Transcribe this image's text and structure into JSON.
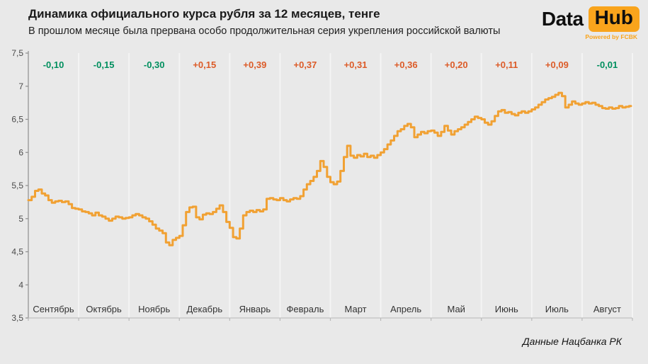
{
  "logo": {
    "part1": "Data",
    "part2": "Hub",
    "powered": "Powered by FCBK"
  },
  "chart_data": {
    "type": "line",
    "title": "Динамика официального курса рубля за 12 месяцев, тенге",
    "subtitle": "В прошлом месяце была прервана особо продолжительная серия укрепления российской валюты",
    "source": "Данные Нацбанка РК",
    "y_axis": {
      "min": 3.5,
      "max": 7.5,
      "step": 0.5,
      "tick_labels": [
        "7,5",
        "7",
        "6,5",
        "6",
        "5,5",
        "5",
        "4,5",
        "4",
        "3,5"
      ]
    },
    "months": [
      "Сентябрь",
      "Октябрь",
      "Ноябрь",
      "Декабрь",
      "Январь",
      "Февраль",
      "Март",
      "Апрель",
      "Май",
      "Июнь",
      "Июль",
      "Август"
    ],
    "monthly_change_labels": [
      "-0,10",
      "-0,15",
      "-0,30",
      "+0,15",
      "+0,39",
      "+0,37",
      "+0,31",
      "+0,36",
      "+0,20",
      "+0,11",
      "+0,09",
      "-0,01"
    ],
    "series": [
      {
        "values_by_month": [
          [
            5.28,
            5.33,
            5.42,
            5.44,
            5.38,
            5.35,
            5.28,
            5.24,
            5.26,
            5.27,
            5.25,
            5.26,
            5.22,
            5.16,
            5.15
          ],
          [
            5.14,
            5.11,
            5.1,
            5.08,
            5.05,
            5.09,
            5.05,
            5.03,
            5.0,
            4.97,
            5.0,
            5.03,
            5.02,
            5.0,
            5.01
          ],
          [
            5.02,
            5.05,
            5.07,
            5.05,
            5.02,
            5.0,
            4.96,
            4.91,
            4.85,
            4.82,
            4.78,
            4.64,
            4.6,
            4.68,
            4.71
          ],
          [
            4.74,
            4.9,
            5.1,
            5.17,
            5.18,
            5.02,
            4.99,
            5.06,
            5.08,
            5.07,
            5.1,
            5.15,
            5.2,
            5.1,
            4.95
          ],
          [
            4.86,
            4.72,
            4.7,
            4.85,
            5.05,
            5.1,
            5.12,
            5.1,
            5.13,
            5.11,
            5.14,
            5.3,
            5.31,
            5.29,
            5.28
          ],
          [
            5.31,
            5.28,
            5.26,
            5.29,
            5.31,
            5.3,
            5.34,
            5.44,
            5.52,
            5.57,
            5.63,
            5.72,
            5.87,
            5.78,
            5.63
          ],
          [
            5.55,
            5.52,
            5.56,
            5.72,
            5.93,
            6.1,
            5.95,
            5.92,
            5.96,
            5.94,
            5.98,
            5.93,
            5.95,
            5.92,
            5.96
          ],
          [
            6.0,
            6.05,
            6.12,
            6.18,
            6.25,
            6.32,
            6.35,
            6.4,
            6.43,
            6.38,
            6.23,
            6.27,
            6.31,
            6.29,
            6.32
          ],
          [
            6.33,
            6.3,
            6.25,
            6.31,
            6.4,
            6.33,
            6.27,
            6.32,
            6.35,
            6.38,
            6.42,
            6.46,
            6.5,
            6.54,
            6.52
          ],
          [
            6.5,
            6.45,
            6.42,
            6.47,
            6.55,
            6.62,
            6.64,
            6.6,
            6.61,
            6.58,
            6.56,
            6.6,
            6.62,
            6.6,
            6.62
          ],
          [
            6.65,
            6.68,
            6.72,
            6.76,
            6.8,
            6.82,
            6.84,
            6.87,
            6.9,
            6.85,
            6.68,
            6.72,
            6.77,
            6.74,
            6.72
          ],
          [
            6.74,
            6.76,
            6.74,
            6.75,
            6.72,
            6.7,
            6.67,
            6.66,
            6.68,
            6.66,
            6.67,
            6.7,
            6.68,
            6.69,
            6.7
          ]
        ]
      }
    ],
    "colors": {
      "line": "#F1A133",
      "positive": "#DC5B28",
      "negative": "#008F5E",
      "accent": "#F9A41C",
      "background": "#E9E9E9"
    },
    "layout": {
      "grid": "vertical-month-separators",
      "legend": "none"
    }
  }
}
